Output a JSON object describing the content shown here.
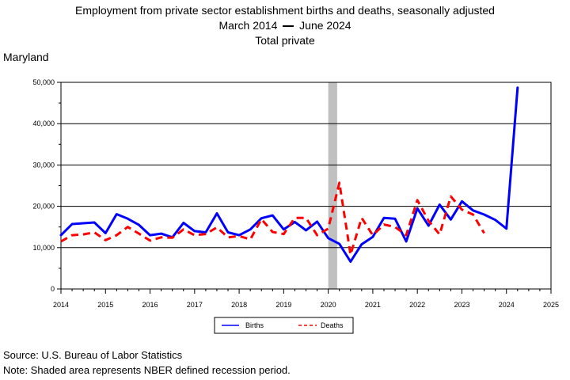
{
  "chart_data": {
    "type": "line",
    "title": "Employment from private sector establishment births and deaths, seasonally adjusted",
    "subtitle_parts": [
      "March 2014",
      "June 2024"
    ],
    "series_label": "Total private",
    "region": "Maryland",
    "xlim": [
      2014,
      2025
    ],
    "ylim": [
      0,
      50000
    ],
    "x_ticks": [
      "2014",
      "2015",
      "2016",
      "2017",
      "2018",
      "2019",
      "2020",
      "2021",
      "2022",
      "2023",
      "2024",
      "2025"
    ],
    "y_ticks": [
      "0",
      "10,000",
      "20,000",
      "30,000",
      "40,000",
      "50,000"
    ],
    "grid": "horizontal",
    "recession": [
      2020.0,
      2020.2
    ],
    "legend_position": "bottom-center",
    "series": [
      {
        "name": "Births",
        "color": "#0000ff",
        "style": "solid",
        "x": [
          2014.0,
          2014.25,
          2014.5,
          2014.75,
          2015.0,
          2015.25,
          2015.5,
          2015.75,
          2016.0,
          2016.25,
          2016.5,
          2016.75,
          2017.0,
          2017.25,
          2017.5,
          2017.75,
          2018.0,
          2018.25,
          2018.5,
          2018.75,
          2019.0,
          2019.25,
          2019.5,
          2019.75,
          2020.0,
          2020.25,
          2020.5,
          2020.75,
          2021.0,
          2021.25,
          2021.5,
          2021.75,
          2022.0,
          2022.25,
          2022.5,
          2022.75,
          2023.0,
          2023.25,
          2023.5,
          2023.75,
          2024.0,
          2024.25
        ],
        "values": [
          13000,
          15700,
          15900,
          16100,
          13500,
          18100,
          17000,
          15500,
          13000,
          13400,
          12500,
          16000,
          14000,
          13700,
          18300,
          13700,
          13000,
          14400,
          17100,
          17800,
          14400,
          16200,
          14200,
          16300,
          12300,
          10900,
          6600,
          10800,
          12600,
          17200,
          17000,
          11500,
          19500,
          15300,
          20400,
          16800,
          21200,
          19000,
          18000,
          16700,
          14600,
          48700
        ]
      },
      {
        "name": "Deaths",
        "color": "#ff0000",
        "style": "dashed",
        "x": [
          2014.0,
          2014.25,
          2014.5,
          2014.75,
          2015.0,
          2015.25,
          2015.5,
          2015.75,
          2016.0,
          2016.25,
          2016.5,
          2016.75,
          2017.0,
          2017.25,
          2017.5,
          2017.75,
          2018.0,
          2018.25,
          2018.5,
          2018.75,
          2019.0,
          2019.25,
          2019.5,
          2019.75,
          2020.0,
          2020.25,
          2020.5,
          2020.75,
          2021.0,
          2021.25,
          2021.5,
          2021.75,
          2022.0,
          2022.25,
          2022.5,
          2022.75,
          2023.0,
          2023.25,
          2023.5
        ],
        "values": [
          11500,
          13000,
          13200,
          13700,
          11800,
          13000,
          15000,
          13400,
          11700,
          12500,
          12400,
          14400,
          13000,
          13300,
          14900,
          12500,
          12800,
          12000,
          16900,
          13800,
          13300,
          17200,
          17200,
          13000,
          14600,
          25700,
          8300,
          17200,
          13000,
          15600,
          15000,
          13000,
          21500,
          16500,
          13200,
          22400,
          19200,
          18000,
          13500
        ]
      }
    ]
  },
  "footer": {
    "source": "Source: U.S. Bureau of Labor Statistics",
    "note": "Note: Shaded area represents NBER defined recession period."
  }
}
